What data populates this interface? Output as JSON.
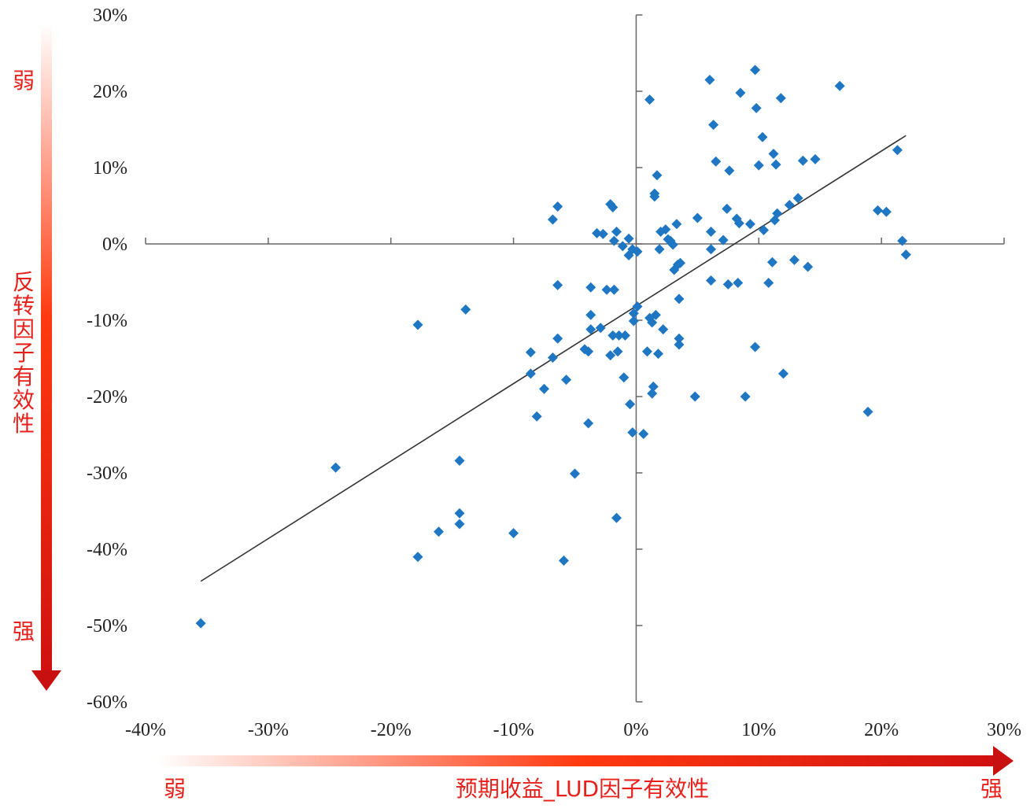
{
  "chart_data": {
    "type": "scatter",
    "xlabel": "预期收益_LUD因子有效性",
    "ylabel": "反转因子有效性",
    "x_axis_left": "弱",
    "x_axis_right": "强",
    "y_axis_top": "弱",
    "y_axis_bottom": "强",
    "xlim": [
      -40,
      30
    ],
    "ylim": [
      -60,
      30
    ],
    "x_ticks": [
      "-40%",
      "-30%",
      "-20%",
      "-10%",
      "0%",
      "10%",
      "20%",
      "30%"
    ],
    "y_ticks": [
      "30%",
      "20%",
      "10%",
      "0%",
      "-10%",
      "-20%",
      "-30%",
      "-40%",
      "-50%",
      "-60%"
    ],
    "marker_color": "#1f77c4",
    "trendline_color": "#333333",
    "trendline": [
      [
        -35.5,
        -44.2
      ],
      [
        22.0,
        14.2
      ]
    ],
    "points": [
      [
        -35.5,
        -49.7
      ],
      [
        -24.5,
        -29.3
      ],
      [
        -17.8,
        -41.0
      ],
      [
        -17.8,
        -10.6
      ],
      [
        -16.1,
        -37.7
      ],
      [
        -14.4,
        -28.4
      ],
      [
        -14.4,
        -35.3
      ],
      [
        -14.4,
        -36.7
      ],
      [
        -13.9,
        -8.6
      ],
      [
        -10.0,
        -37.9
      ],
      [
        -8.6,
        -14.2
      ],
      [
        -8.6,
        -17.0
      ],
      [
        -8.1,
        -22.6
      ],
      [
        -7.5,
        -19.0
      ],
      [
        -6.8,
        -14.9
      ],
      [
        -6.8,
        3.2
      ],
      [
        -6.4,
        4.9
      ],
      [
        -6.4,
        -12.4
      ],
      [
        -6.4,
        -5.4
      ],
      [
        -5.9,
        -41.5
      ],
      [
        -5.7,
        -17.8
      ],
      [
        -5.0,
        -30.1
      ],
      [
        -4.2,
        -13.8
      ],
      [
        -3.9,
        -14.1
      ],
      [
        -3.9,
        -23.5
      ],
      [
        -3.7,
        -5.7
      ],
      [
        -3.7,
        -9.3
      ],
      [
        -3.7,
        -11.2
      ],
      [
        -3.2,
        1.4
      ],
      [
        -2.9,
        -11.0
      ],
      [
        -2.7,
        1.3
      ],
      [
        -2.4,
        -6.0
      ],
      [
        -2.1,
        -14.6
      ],
      [
        -2.1,
        5.2
      ],
      [
        -1.9,
        -12.0
      ],
      [
        -1.9,
        4.8
      ],
      [
        -1.8,
        -6.0
      ],
      [
        -1.8,
        0.4
      ],
      [
        -1.6,
        1.6
      ],
      [
        -1.6,
        -35.9
      ],
      [
        -1.5,
        -14.1
      ],
      [
        -1.4,
        -12.0
      ],
      [
        -1.1,
        -0.3
      ],
      [
        -1.0,
        -17.5
      ],
      [
        -0.9,
        -12.0
      ],
      [
        -0.6,
        0.7
      ],
      [
        -0.6,
        -1.5
      ],
      [
        -0.5,
        -21.0
      ],
      [
        -0.3,
        -0.7
      ],
      [
        -0.3,
        -24.7
      ],
      [
        -0.2,
        -9.1
      ],
      [
        -0.2,
        -10.1
      ],
      [
        0.1,
        -8.2
      ],
      [
        0.1,
        -1.0
      ],
      [
        0.6,
        -24.9
      ],
      [
        0.9,
        -14.1
      ],
      [
        1.1,
        18.9
      ],
      [
        1.1,
        -9.7
      ],
      [
        1.3,
        -19.6
      ],
      [
        1.3,
        -10.3
      ],
      [
        1.4,
        -18.7
      ],
      [
        1.5,
        6.2
      ],
      [
        1.5,
        6.6
      ],
      [
        1.6,
        -9.3
      ],
      [
        1.7,
        9.0
      ],
      [
        1.8,
        -14.4
      ],
      [
        1.9,
        -0.7
      ],
      [
        2.0,
        1.6
      ],
      [
        2.2,
        -11.2
      ],
      [
        2.4,
        1.9
      ],
      [
        2.6,
        0.6
      ],
      [
        2.8,
        0.4
      ],
      [
        3.0,
        -0.1
      ],
      [
        3.1,
        -3.4
      ],
      [
        3.3,
        2.6
      ],
      [
        3.4,
        -2.7
      ],
      [
        3.5,
        -7.2
      ],
      [
        3.5,
        -12.4
      ],
      [
        3.5,
        -13.2
      ],
      [
        3.6,
        -2.5
      ],
      [
        4.8,
        -20.0
      ],
      [
        5.0,
        3.4
      ],
      [
        6.0,
        21.5
      ],
      [
        6.1,
        1.6
      ],
      [
        6.1,
        -4.8
      ],
      [
        6.1,
        -0.7
      ],
      [
        6.3,
        15.6
      ],
      [
        6.5,
        10.8
      ],
      [
        7.1,
        0.5
      ],
      [
        7.4,
        4.6
      ],
      [
        7.5,
        -5.3
      ],
      [
        7.6,
        9.6
      ],
      [
        8.2,
        3.3
      ],
      [
        8.3,
        -5.1
      ],
      [
        8.4,
        2.7
      ],
      [
        8.5,
        19.8
      ],
      [
        8.9,
        -20.0
      ],
      [
        9.3,
        2.6
      ],
      [
        9.7,
        22.8
      ],
      [
        9.7,
        -13.5
      ],
      [
        9.8,
        17.8
      ],
      [
        10.0,
        10.3
      ],
      [
        10.3,
        14.0
      ],
      [
        10.4,
        1.8
      ],
      [
        10.8,
        -5.1
      ],
      [
        11.1,
        -2.4
      ],
      [
        11.2,
        11.8
      ],
      [
        11.3,
        3.1
      ],
      [
        11.4,
        10.4
      ],
      [
        11.5,
        4.0
      ],
      [
        11.8,
        19.1
      ],
      [
        12.0,
        -17.0
      ],
      [
        12.5,
        5.1
      ],
      [
        12.9,
        -2.1
      ],
      [
        13.2,
        6.0
      ],
      [
        13.6,
        10.9
      ],
      [
        14.0,
        -3.0
      ],
      [
        14.6,
        11.1
      ],
      [
        16.6,
        20.7
      ],
      [
        18.9,
        -22.0
      ],
      [
        19.7,
        4.4
      ],
      [
        20.4,
        4.2
      ],
      [
        21.3,
        12.3
      ],
      [
        21.7,
        0.4
      ],
      [
        22.0,
        -1.4
      ]
    ]
  }
}
